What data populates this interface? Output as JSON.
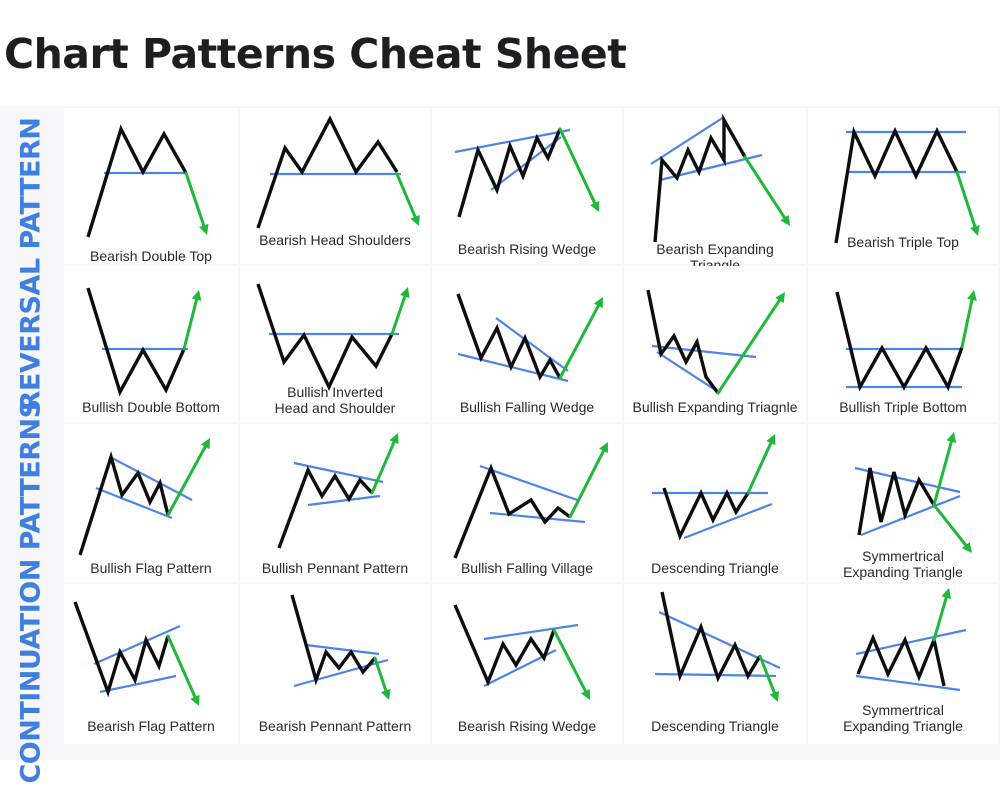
{
  "title": "Chart Patterns Cheat Sheet",
  "sections": [
    {
      "label": "REVERSAL PATTERN"
    },
    {
      "label": "CONTINUATION PATTERNS"
    }
  ],
  "colors": {
    "price": "#0d0d0d",
    "trendline": "#4d84e8",
    "bullish_arrow": "#1fb83a",
    "bearish_arrow": "#1fb83a",
    "section_label": "#3f7fe0"
  },
  "patterns": [
    {
      "caption": "Bearish Double Top",
      "arrow": "down-green"
    },
    {
      "caption": "Bearish Head Shoulders",
      "arrow": "down-green"
    },
    {
      "caption": "Bearish Rising Wedge",
      "arrow": "down-green"
    },
    {
      "caption": "Bearish Expanding\nTriangle",
      "arrow": "down-green"
    },
    {
      "caption": "Bearish Triple Top",
      "arrow": "down-green"
    },
    {
      "caption": "Bullish Double Bottom",
      "arrow": "up-green"
    },
    {
      "caption": "Bullish Inverted\nHead and Shoulder",
      "arrow": "up-green"
    },
    {
      "caption": "Bullish Falling Wedge",
      "arrow": "up-green"
    },
    {
      "caption": "Bullish Expanding Triagnle",
      "arrow": "up-green"
    },
    {
      "caption": "Bullish Triple Bottom",
      "arrow": "up-green"
    },
    {
      "caption": "Bullish Flag Pattern",
      "arrow": "up-green"
    },
    {
      "caption": "Bullish Pennant Pattern",
      "arrow": "up-green"
    },
    {
      "caption": "Bullish Falling Village",
      "arrow": "up-green"
    },
    {
      "caption": "Descending Triangle",
      "arrow": "up-green"
    },
    {
      "caption": "Symmertrical\nExpanding Triangle",
      "arrow": "up-down-green"
    },
    {
      "caption": "Bearish Flag Pattern",
      "arrow": "down-green"
    },
    {
      "caption": "Bearish Pennant Pattern",
      "arrow": "down-green"
    },
    {
      "caption": "Bearish Rising Wedge",
      "arrow": "down-green"
    },
    {
      "caption": "Descending Triangle",
      "arrow": "down-green"
    },
    {
      "caption": "Symmertrical\nExpanding Triangle",
      "arrow": "up-green"
    }
  ]
}
